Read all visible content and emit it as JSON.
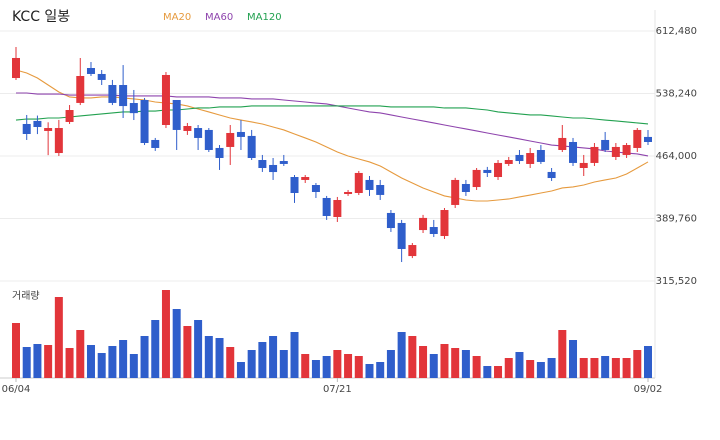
{
  "chart_data": {
    "type": "candlestick",
    "title": "KCC 일봉",
    "categories": [
      "06/04",
      null,
      null,
      null,
      null,
      null,
      null,
      null,
      null,
      null,
      null,
      null,
      null,
      null,
      null,
      null,
      null,
      null,
      null,
      null,
      null,
      null,
      null,
      null,
      null,
      null,
      null,
      null,
      null,
      null,
      "07/21",
      null,
      null,
      null,
      null,
      null,
      null,
      null,
      null,
      null,
      null,
      null,
      null,
      null,
      null,
      null,
      null,
      null,
      null,
      null,
      null,
      null,
      null,
      null,
      null,
      null,
      null,
      null,
      null,
      "09/02"
    ],
    "up_color": "#e2353a",
    "down_color": "#2f5ecb",
    "open": [
      556600,
      502000,
      505600,
      493700,
      467500,
      504400,
      527000,
      568500,
      561400,
      548300,
      548300,
      526900,
      530500,
      483000,
      500800,
      530500,
      493700,
      497200,
      494900,
      473500,
      474700,
      492500,
      487800,
      459200,
      453300,
      458000,
      439000,
      435500,
      429500,
      414100,
      391500,
      418800,
      420000,
      435500,
      429500,
      396300,
      384400,
      345100,
      376000,
      379600,
      368900,
      405800,
      430700,
      427100,
      447400,
      439000,
      454500,
      465200,
      454500,
      471100,
      445000,
      471100,
      480600,
      449700,
      455700,
      483000,
      462800,
      465200,
      473500,
      486600
    ],
    "high": [
      593500,
      512700,
      512000,
      504000,
      506800,
      524500,
      580400,
      575600,
      566100,
      554300,
      572000,
      542400,
      532900,
      485400,
      563700,
      530500,
      503200,
      500800,
      497200,
      477000,
      500800,
      506800,
      494900,
      465200,
      461600,
      465200,
      441400,
      441400,
      431900,
      416500,
      415300,
      423600,
      446200,
      440200,
      435500,
      399800,
      388000,
      360600,
      394000,
      388000,
      402200,
      438000,
      435500,
      449700,
      451000,
      459200,
      462800,
      471100,
      473500,
      477000,
      449700,
      500800,
      485400,
      465200,
      479400,
      492500,
      479400,
      479400,
      497200,
      494900
    ],
    "low": [
      554300,
      483000,
      490000,
      465000,
      464000,
      502000,
      524500,
      559000,
      548300,
      524500,
      509100,
      506700,
      477000,
      470000,
      497200,
      471100,
      489000,
      471100,
      468700,
      447400,
      453300,
      471100,
      459200,
      445000,
      435500,
      452100,
      408200,
      431900,
      414100,
      388000,
      385600,
      416500,
      417600,
      416500,
      411700,
      373700,
      338000,
      342700,
      372500,
      367700,
      365400,
      402200,
      416500,
      423600,
      439000,
      435500,
      452100,
      454500,
      449700,
      454500,
      434300,
      468700,
      452100,
      440200,
      452100,
      468700,
      459200,
      461600,
      468700,
      477000
    ],
    "close": [
      580400,
      490100,
      498400,
      497200,
      497200,
      518600,
      559000,
      561400,
      554300,
      527000,
      523300,
      514900,
      479400,
      473500,
      560200,
      494900,
      499600,
      485400,
      471100,
      461600,
      491300,
      486600,
      461600,
      449700,
      444900,
      454500,
      420000,
      439000,
      421200,
      392700,
      411700,
      421200,
      443800,
      423600,
      417700,
      378400,
      353500,
      358200,
      390400,
      371300,
      399800,
      435500,
      421200,
      447400,
      443800,
      455700,
      459200,
      458000,
      467500,
      456900,
      437800,
      485400,
      455700,
      455700,
      474700,
      471100,
      474700,
      477000,
      494900,
      480600
    ],
    "moving_averages": [
      {
        "name": "MA20",
        "color": "#e69a3e",
        "values": [
          566100,
          562600,
          556600,
          548300,
          540000,
          534100,
          532900,
          532900,
          534100,
          534100,
          532900,
          531700,
          530500,
          528100,
          526900,
          525800,
          523400,
          519800,
          516300,
          512700,
          509100,
          506700,
          504400,
          502000,
          498400,
          494900,
          490100,
          485400,
          480600,
          474700,
          468700,
          464000,
          460400,
          456900,
          452100,
          445000,
          437800,
          431900,
          426000,
          421200,
          416500,
          414100,
          411700,
          410500,
          410500,
          411700,
          412900,
          415300,
          417600,
          420000,
          422400,
          426000,
          427200,
          429500,
          433100,
          435500,
          437800,
          442600,
          449700,
          456900
        ]
      },
      {
        "name": "MA60",
        "color": "#8e44ad",
        "values": [
          538800,
          538800,
          537600,
          537600,
          537600,
          536400,
          536400,
          536400,
          536400,
          536400,
          535300,
          535300,
          535300,
          535300,
          535300,
          534100,
          534100,
          534100,
          534100,
          532900,
          532900,
          532900,
          531700,
          531700,
          531700,
          530500,
          529300,
          528100,
          526900,
          525800,
          523400,
          521000,
          518600,
          516300,
          515100,
          512700,
          510300,
          507900,
          505600,
          503200,
          500800,
          498400,
          496100,
          493700,
          491300,
          488900,
          486600,
          484200,
          481800,
          479400,
          477000,
          475900,
          474700,
          473500,
          472300,
          469900,
          468700,
          467500,
          466400,
          464000
        ]
      },
      {
        "name": "MA120",
        "color": "#22a150",
        "values": [
          506700,
          507900,
          507900,
          509100,
          509100,
          510300,
          511500,
          512700,
          513900,
          515100,
          516300,
          516300,
          517400,
          517400,
          518600,
          518600,
          519800,
          521000,
          521000,
          522200,
          522200,
          522200,
          523400,
          523400,
          523400,
          523400,
          523400,
          523400,
          523400,
          523400,
          523400,
          523400,
          523400,
          523400,
          523400,
          522200,
          522200,
          522200,
          522200,
          522200,
          521000,
          521000,
          521000,
          519800,
          518600,
          516300,
          515100,
          513900,
          512700,
          512700,
          511500,
          510300,
          509100,
          509100,
          507900,
          506700,
          505600,
          504400,
          503200,
          502000
        ]
      }
    ],
    "ylim": [
      310000,
      626000
    ],
    "yticks": [
      {
        "value": 315520,
        "label": "315,520"
      },
      {
        "value": 389760,
        "label": "389,760"
      },
      {
        "value": 464000,
        "label": "464,000"
      },
      {
        "value": 538240,
        "label": "538,240"
      },
      {
        "value": 612480,
        "label": "612,480"
      }
    ],
    "grid": true,
    "volume": {
      "label": "거래량",
      "ylim": [
        0,
        90000
      ],
      "values": [
        55000,
        31000,
        34000,
        33000,
        81000,
        30000,
        48000,
        33000,
        25000,
        32000,
        38000,
        24000,
        42000,
        58000,
        88000,
        69000,
        52000,
        58000,
        42000,
        40000,
        31000,
        16000,
        28000,
        36000,
        42000,
        28000,
        46000,
        24000,
        18000,
        22000,
        28000,
        24000,
        22000,
        14000,
        16000,
        28000,
        46000,
        42000,
        32000,
        24000,
        34000,
        30000,
        28000,
        22000,
        12000,
        12000,
        20000,
        26000,
        18000,
        16000,
        20000,
        48000,
        38000,
        20000,
        20000,
        22000,
        20000,
        20000,
        28000,
        32000
      ]
    }
  }
}
